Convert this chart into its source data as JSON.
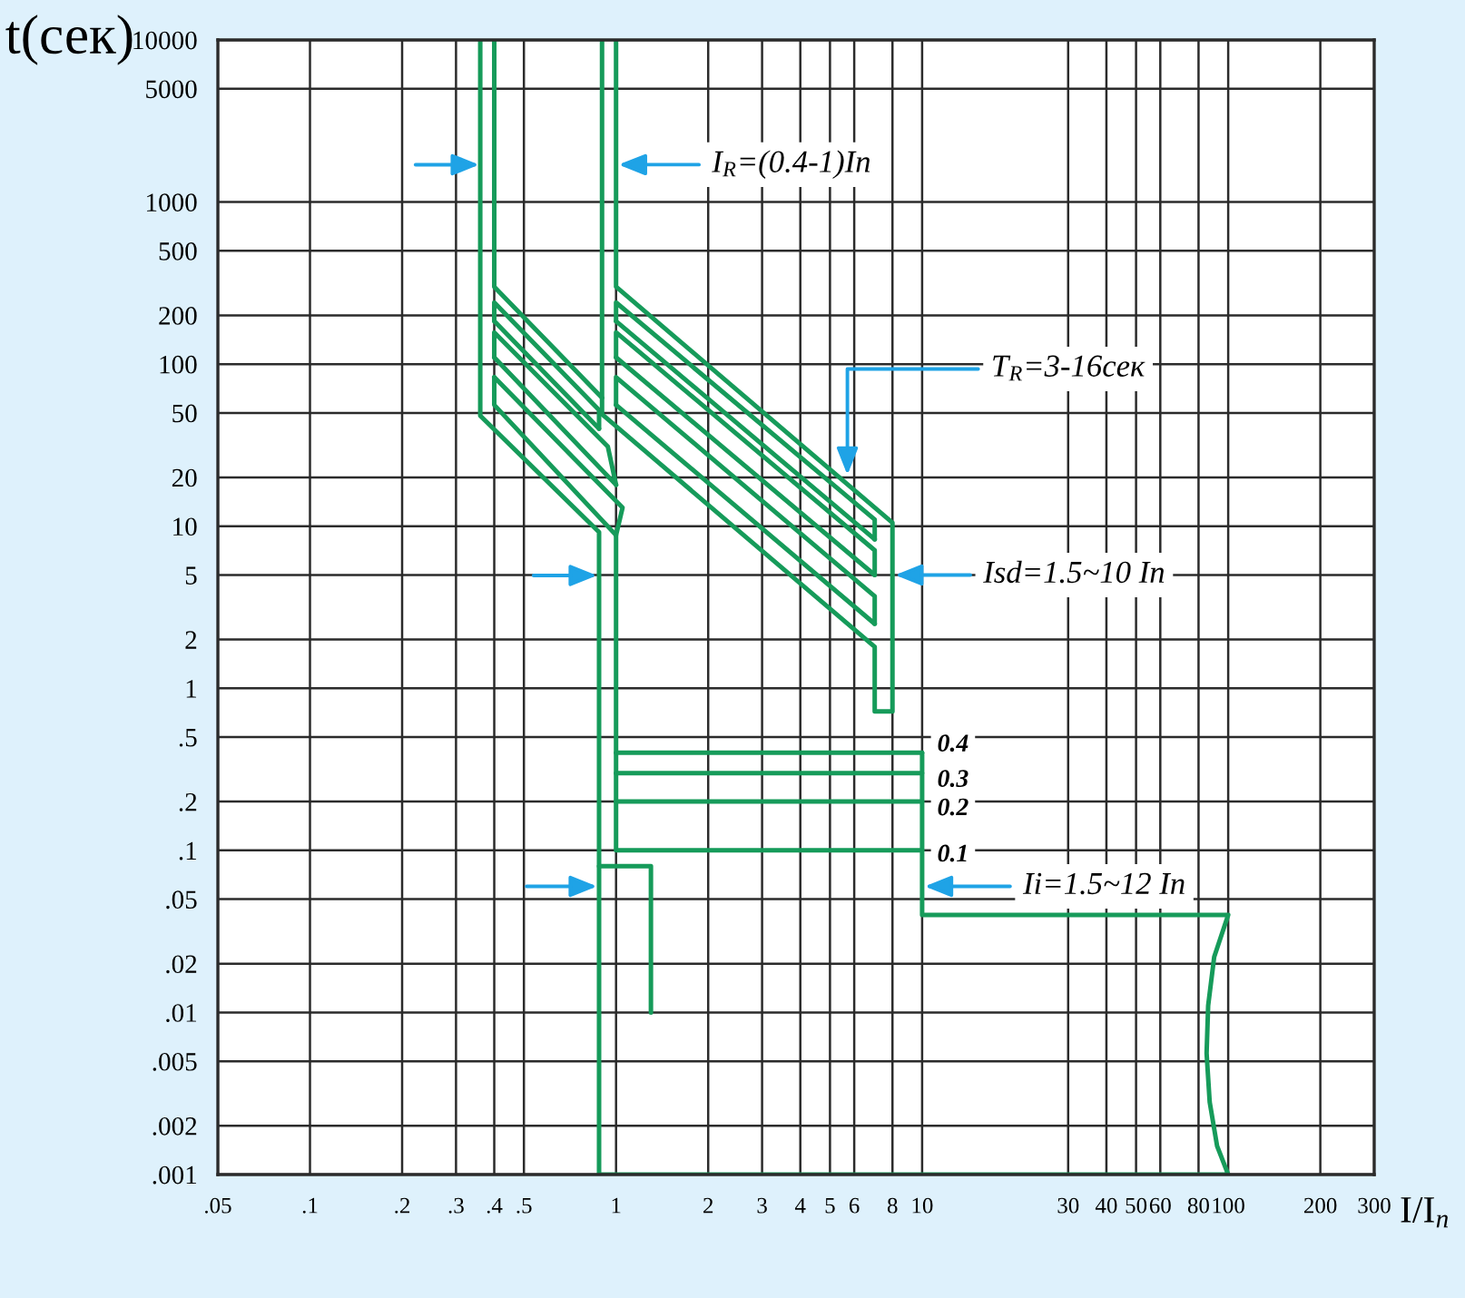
{
  "chart_data": {
    "type": "line",
    "xlabel": "I/I$_{n}$",
    "ylabel": "t(сек)",
    "log": "xy",
    "xlim": [
      0.05,
      300
    ],
    "ylim": [
      0.001,
      10000
    ],
    "xticks": [
      {
        "value": 0.05,
        "label": ".05"
      },
      {
        "value": 0.1,
        "label": ".1"
      },
      {
        "value": 0.2,
        "label": ".2"
      },
      {
        "value": 0.3,
        "label": ".3"
      },
      {
        "value": 0.4,
        "label": ".4"
      },
      {
        "value": 0.5,
        "label": ".5"
      },
      1,
      2,
      3,
      4,
      5,
      6,
      8,
      10,
      30,
      40,
      50,
      60,
      80,
      100,
      200,
      300
    ],
    "yticks": [
      {
        "value": 0.001,
        "label": ".001"
      },
      {
        "value": 0.002,
        "label": ".002"
      },
      {
        "value": 0.005,
        "label": ".005"
      },
      {
        "value": 0.01,
        "label": ".01"
      },
      {
        "value": 0.02,
        "label": ".02"
      },
      {
        "value": 0.05,
        "label": ".05"
      },
      {
        "value": 0.1,
        "label": ".1"
      },
      {
        "value": 0.2,
        "label": ".2"
      },
      {
        "value": 0.5,
        "label": ".5"
      },
      1,
      2,
      5,
      10,
      20,
      50,
      100,
      200,
      500,
      1000,
      5000,
      10000
    ],
    "grid": true,
    "line_style": "solid",
    "series": [
      {
        "color": "#169b5a",
        "x": [
          0.36,
          0.36,
          0.88,
          0.88,
          100,
          92,
          87,
          85,
          86,
          90,
          100,
          10,
          10
        ],
        "values": [
          10000,
          48,
          9.2,
          0.001,
          0.001,
          0.0015,
          0.0028,
          0.0056,
          0.011,
          0.022,
          0.04,
          0.04,
          0.4
        ]
      },
      {
        "color": "#169b5a",
        "x": [
          0.4,
          0.4,
          0.9
        ],
        "values": [
          10000,
          300,
          62
        ]
      },
      {
        "color": "#169b5a",
        "x": [
          0.4,
          0.4,
          0.88,
          0.88
        ],
        "values": [
          184,
          240,
          52,
          40
        ]
      },
      {
        "color": "#169b5a",
        "x": [
          0.4,
          0.88
        ],
        "values": [
          184,
          40
        ]
      },
      {
        "color": "#169b5a",
        "x": [
          0.4,
          0.4,
          0.94,
          1.0
        ],
        "values": [
          110,
          157,
          31,
          18
        ]
      },
      {
        "color": "#169b5a",
        "x": [
          0.4,
          1.0
        ],
        "values": [
          110,
          18
        ]
      },
      {
        "color": "#169b5a",
        "x": [
          0.4,
          1.05,
          1.0
        ],
        "values": [
          83,
          13,
          8.8
        ]
      },
      {
        "color": "#169b5a",
        "x": [
          0.4,
          0.4,
          1.0,
          1.0,
          10
        ],
        "values": [
          83,
          56,
          8.8,
          0.1,
          0.1
        ]
      },
      {
        "color": "#169b5a",
        "x": [
          1.0,
          10
        ],
        "values": [
          0.4,
          0.4
        ]
      },
      {
        "color": "#169b5a",
        "x": [
          1.0,
          10
        ],
        "values": [
          0.3,
          0.3
        ]
      },
      {
        "color": "#169b5a",
        "x": [
          1.0,
          10
        ],
        "values": [
          0.2,
          0.2
        ]
      },
      {
        "color": "#169b5a",
        "x": [
          0.88,
          1.3,
          1.3
        ],
        "values": [
          0.08,
          0.08,
          0.01
        ]
      },
      {
        "color": "#169b5a",
        "x": [
          0.9,
          0.9,
          7,
          7,
          8,
          8,
          1.0,
          1.0
        ],
        "values": [
          10000,
          49,
          1.8,
          0.72,
          0.72,
          10.5,
          300,
          10000
        ]
      },
      {
        "color": "#169b5a",
        "x": [
          1.0,
          1.0,
          7,
          7
        ],
        "values": [
          184,
          240,
          11,
          8.3
        ]
      },
      {
        "color": "#169b5a",
        "x": [
          1.0,
          7
        ],
        "values": [
          184,
          8.3
        ]
      },
      {
        "color": "#169b5a",
        "x": [
          1.0,
          1.0,
          7,
          7
        ],
        "values": [
          110,
          157,
          7.1,
          5
        ]
      },
      {
        "color": "#169b5a",
        "x": [
          1.0,
          7
        ],
        "values": [
          110,
          5
        ]
      },
      {
        "color": "#169b5a",
        "x": [
          1.0,
          1.0,
          7,
          7
        ],
        "values": [
          56,
          83,
          3.7,
          2.5
        ]
      },
      {
        "color": "#169b5a",
        "x": [
          1.0,
          7
        ],
        "values": [
          56,
          2.5
        ]
      }
    ],
    "annotations": [
      {
        "text": "I$_{R}$=(0.4-1)In",
        "x": 1.0,
        "y": 1700
      },
      {
        "text": "T$_{R}$=3-16сек",
        "x": 5.7,
        "y": 20
      },
      {
        "text": "Isd=1.5~10 In",
        "x": 8,
        "y": 5
      },
      {
        "text": "Ii=1.5~12 In",
        "x": 10,
        "y": 0.06
      },
      {
        "text": "0.4",
        "x": 10,
        "y": 0.4
      },
      {
        "text": "0.3",
        "x": 10,
        "y": 0.3
      },
      {
        "text": "0.2",
        "x": 10,
        "y": 0.2
      },
      {
        "text": "0.1",
        "x": 10,
        "y": 0.1
      }
    ]
  }
}
